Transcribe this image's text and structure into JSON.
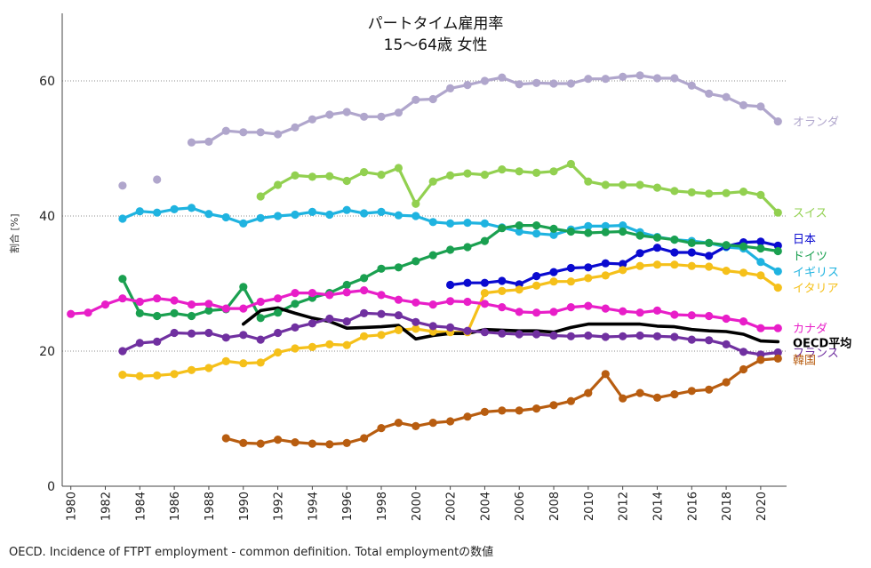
{
  "chart_data": {
    "type": "line",
    "title": "パートタイム雇用率",
    "subtitle": "15〜64歳 女性",
    "ylabel": "割合 [%]",
    "xlabel": "",
    "xlim": [
      1979.5,
      2021.5
    ],
    "ylim": [
      0,
      70
    ],
    "yticks": [
      0,
      20,
      40,
      60
    ],
    "xticks": [
      1980,
      1982,
      1984,
      1986,
      1988,
      1990,
      1992,
      1994,
      1996,
      1998,
      2000,
      2002,
      2004,
      2006,
      2008,
      2010,
      2012,
      2014,
      2016,
      2018,
      2020
    ],
    "grid": "horizontal dotted at 20, 40, 60",
    "series": [
      {
        "name": "オランダ",
        "color": "#b0a6cc",
        "x": [
          1983,
          1985,
          1987,
          1988,
          1989,
          1990,
          1991,
          1992,
          1993,
          1994,
          1995,
          1996,
          1997,
          1998,
          1999,
          2000,
          2001,
          2002,
          2003,
          2004,
          2005,
          2006,
          2007,
          2008,
          2009,
          2010,
          2011,
          2012,
          2013,
          2014,
          2015,
          2016,
          2017,
          2018,
          2019,
          2020,
          2021
        ],
        "y": [
          44.5,
          45.4,
          50.9,
          51.0,
          52.6,
          52.4,
          52.4,
          52.1,
          53.1,
          54.3,
          55.0,
          55.4,
          54.7,
          54.7,
          55.3,
          57.2,
          57.3,
          58.9,
          59.4,
          60.0,
          60.5,
          59.5,
          59.7,
          59.6,
          59.6,
          60.3,
          60.3,
          60.6,
          60.8,
          60.4,
          60.4,
          59.3,
          58.1,
          57.6,
          56.4,
          56.2,
          54.0
        ]
      },
      {
        "name": "スイス",
        "color": "#92d050",
        "x": [
          1991,
          1992,
          1993,
          1994,
          1995,
          1996,
          1997,
          1998,
          1999,
          2000,
          2001,
          2002,
          2003,
          2004,
          2005,
          2006,
          2007,
          2008,
          2009,
          2010,
          2011,
          2012,
          2013,
          2014,
          2015,
          2016,
          2017,
          2018,
          2019,
          2020,
          2021
        ],
        "y": [
          42.9,
          44.6,
          46.0,
          45.8,
          45.9,
          45.2,
          46.5,
          46.1,
          47.1,
          41.8,
          45.1,
          46.0,
          46.3,
          46.1,
          46.9,
          46.6,
          46.4,
          46.6,
          47.7,
          45.1,
          44.6,
          44.6,
          44.6,
          44.2,
          43.7,
          43.5,
          43.3,
          43.4,
          43.6,
          43.1,
          40.5
        ]
      },
      {
        "name": "イギリス",
        "color": "#1fb3e0",
        "x": [
          1983,
          1984,
          1985,
          1986,
          1987,
          1988,
          1989,
          1990,
          1991,
          1992,
          1993,
          1994,
          1995,
          1996,
          1997,
          1998,
          1999,
          2000,
          2001,
          2002,
          2003,
          2004,
          2005,
          2006,
          2007,
          2008,
          2009,
          2010,
          2011,
          2012,
          2013,
          2014,
          2015,
          2016,
          2017,
          2018,
          2019,
          2020,
          2021
        ],
        "y": [
          39.6,
          40.7,
          40.5,
          41.0,
          41.2,
          40.3,
          39.8,
          38.9,
          39.7,
          40.0,
          40.2,
          40.6,
          40.2,
          40.9,
          40.4,
          40.6,
          40.1,
          40.0,
          39.1,
          38.9,
          39.0,
          38.9,
          38.3,
          37.7,
          37.4,
          37.2,
          38.0,
          38.5,
          38.5,
          38.6,
          37.6,
          36.9,
          36.5,
          36.3,
          36.0,
          35.4,
          35.2,
          33.2,
          31.8
        ]
      },
      {
        "name": "日本",
        "color": "#0a0ad0",
        "x": [
          2002,
          2003,
          2004,
          2005,
          2006,
          2007,
          2008,
          2009,
          2010,
          2011,
          2012,
          2013,
          2014,
          2015,
          2016,
          2017,
          2018,
          2019,
          2020,
          2021
        ],
        "y": [
          29.8,
          30.1,
          30.1,
          30.4,
          29.9,
          31.1,
          31.7,
          32.3,
          32.4,
          33.0,
          32.9,
          34.5,
          35.3,
          34.6,
          34.6,
          34.1,
          35.5,
          36.1,
          36.2,
          35.6
        ]
      },
      {
        "name": "ドイツ",
        "color": "#1aa050",
        "x": [
          1983,
          1984,
          1985,
          1986,
          1987,
          1988,
          1989,
          1990,
          1991,
          1992,
          1993,
          1994,
          1995,
          1996,
          1997,
          1998,
          1999,
          2000,
          2001,
          2002,
          2003,
          2004,
          2005,
          2006,
          2007,
          2008,
          2009,
          2010,
          2011,
          2012,
          2013,
          2014,
          2015,
          2016,
          2017,
          2018,
          2019,
          2020,
          2021
        ],
        "y": [
          30.7,
          25.6,
          25.2,
          25.6,
          25.2,
          26.0,
          26.2,
          29.5,
          24.9,
          25.7,
          27.0,
          27.9,
          28.6,
          29.8,
          30.8,
          32.2,
          32.4,
          33.3,
          34.2,
          35.0,
          35.4,
          36.3,
          38.2,
          38.6,
          38.6,
          38.1,
          37.7,
          37.5,
          37.6,
          37.7,
          37.1,
          36.8,
          36.5,
          36.0,
          36.0,
          35.7,
          35.5,
          35.2,
          34.8
        ]
      },
      {
        "name": "イタリア",
        "color": "#f5c01a",
        "x": [
          1983,
          1984,
          1985,
          1986,
          1987,
          1988,
          1989,
          1990,
          1991,
          1992,
          1993,
          1994,
          1995,
          1996,
          1997,
          1998,
          1999,
          2000,
          2001,
          2002,
          2003,
          2004,
          2005,
          2006,
          2007,
          2008,
          2009,
          2010,
          2011,
          2012,
          2013,
          2014,
          2015,
          2016,
          2017,
          2018,
          2019,
          2020,
          2021
        ],
        "y": [
          16.5,
          16.3,
          16.4,
          16.6,
          17.2,
          17.5,
          18.5,
          18.2,
          18.3,
          19.8,
          20.4,
          20.6,
          21.0,
          20.9,
          22.2,
          22.4,
          23.1,
          23.3,
          22.9,
          22.8,
          22.8,
          28.6,
          28.9,
          29.1,
          29.7,
          30.3,
          30.3,
          30.8,
          31.2,
          32.0,
          32.6,
          32.8,
          32.8,
          32.6,
          32.5,
          31.9,
          31.6,
          31.2,
          29.4
        ]
      },
      {
        "name": "カナダ",
        "color": "#e81ec8",
        "x": [
          1980,
          1981,
          1982,
          1983,
          1984,
          1985,
          1986,
          1987,
          1988,
          1989,
          1990,
          1991,
          1992,
          1993,
          1994,
          1995,
          1996,
          1997,
          1998,
          1999,
          2000,
          2001,
          2002,
          2003,
          2004,
          2005,
          2006,
          2007,
          2008,
          2009,
          2010,
          2011,
          2012,
          2013,
          2014,
          2015,
          2016,
          2017,
          2018,
          2019,
          2020,
          2021
        ],
        "y": [
          25.5,
          25.7,
          26.9,
          27.8,
          27.3,
          27.8,
          27.5,
          26.9,
          27.0,
          26.3,
          26.3,
          27.3,
          27.8,
          28.6,
          28.6,
          28.3,
          28.7,
          29.0,
          28.3,
          27.6,
          27.2,
          26.9,
          27.4,
          27.3,
          27.0,
          26.5,
          25.8,
          25.7,
          25.8,
          26.5,
          26.7,
          26.3,
          25.9,
          25.7,
          26.0,
          25.4,
          25.3,
          25.2,
          24.8,
          24.4,
          23.4,
          23.4
        ]
      },
      {
        "name": "OECD平均",
        "color": "#000000",
        "x": [
          1990,
          1991,
          1992,
          1993,
          1994,
          1995,
          1996,
          1997,
          1998,
          1999,
          2000,
          2001,
          2002,
          2003,
          2004,
          2005,
          2006,
          2007,
          2008,
          2009,
          2010,
          2011,
          2012,
          2013,
          2014,
          2015,
          2016,
          2017,
          2018,
          2019,
          2020,
          2021
        ],
        "y": [
          24.0,
          26.0,
          26.4,
          25.6,
          24.9,
          24.4,
          23.4,
          23.5,
          23.6,
          23.8,
          21.8,
          22.3,
          22.6,
          22.6,
          23.2,
          23.1,
          23.0,
          23.0,
          22.8,
          23.5,
          24.0,
          24.0,
          24.0,
          24.0,
          23.7,
          23.6,
          23.2,
          23.0,
          22.9,
          22.5,
          21.5,
          21.4
        ]
      },
      {
        "name": "フランス",
        "color": "#7030a0",
        "x": [
          1983,
          1984,
          1985,
          1986,
          1987,
          1988,
          1989,
          1990,
          1991,
          1992,
          1993,
          1994,
          1995,
          1996,
          1997,
          1998,
          1999,
          2000,
          2001,
          2002,
          2003,
          2004,
          2005,
          2006,
          2007,
          2008,
          2009,
          2010,
          2011,
          2012,
          2013,
          2014,
          2015,
          2016,
          2017,
          2018,
          2019,
          2020,
          2021
        ],
        "y": [
          20.0,
          21.2,
          21.4,
          22.7,
          22.6,
          22.7,
          22.0,
          22.4,
          21.7,
          22.7,
          23.5,
          24.1,
          24.8,
          24.4,
          25.6,
          25.5,
          25.3,
          24.3,
          23.7,
          23.5,
          23.0,
          22.8,
          22.6,
          22.5,
          22.5,
          22.3,
          22.2,
          22.3,
          22.1,
          22.2,
          22.3,
          22.2,
          22.1,
          21.7,
          21.6,
          21.0,
          19.9,
          19.5,
          19.8
        ]
      },
      {
        "name": "韓国",
        "color": "#b85d10",
        "x": [
          1989,
          1990,
          1991,
          1992,
          1993,
          1994,
          1995,
          1996,
          1997,
          1998,
          1999,
          2000,
          2001,
          2002,
          2003,
          2004,
          2005,
          2006,
          2007,
          2008,
          2009,
          2010,
          2011,
          2012,
          2013,
          2014,
          2015,
          2016,
          2017,
          2018,
          2019,
          2020,
          2021
        ],
        "y": [
          7.1,
          6.4,
          6.3,
          6.9,
          6.5,
          6.3,
          6.2,
          6.4,
          7.1,
          8.6,
          9.4,
          8.9,
          9.4,
          9.6,
          10.3,
          11.0,
          11.2,
          11.2,
          11.5,
          12.0,
          12.6,
          13.8,
          16.6,
          13.0,
          13.8,
          13.1,
          13.6,
          14.1,
          14.3,
          15.4,
          17.3,
          18.7,
          18.9
        ]
      }
    ],
    "series_labels": [
      "オランダ",
      "スイス",
      "日本",
      "ドイツ",
      "イギリス",
      "イタリア",
      "カナダ",
      "OECD平均",
      "フランス",
      "韓国"
    ]
  },
  "footer": "OECD. Incidence of FTPT employment - common definition. Total employmentの数値"
}
